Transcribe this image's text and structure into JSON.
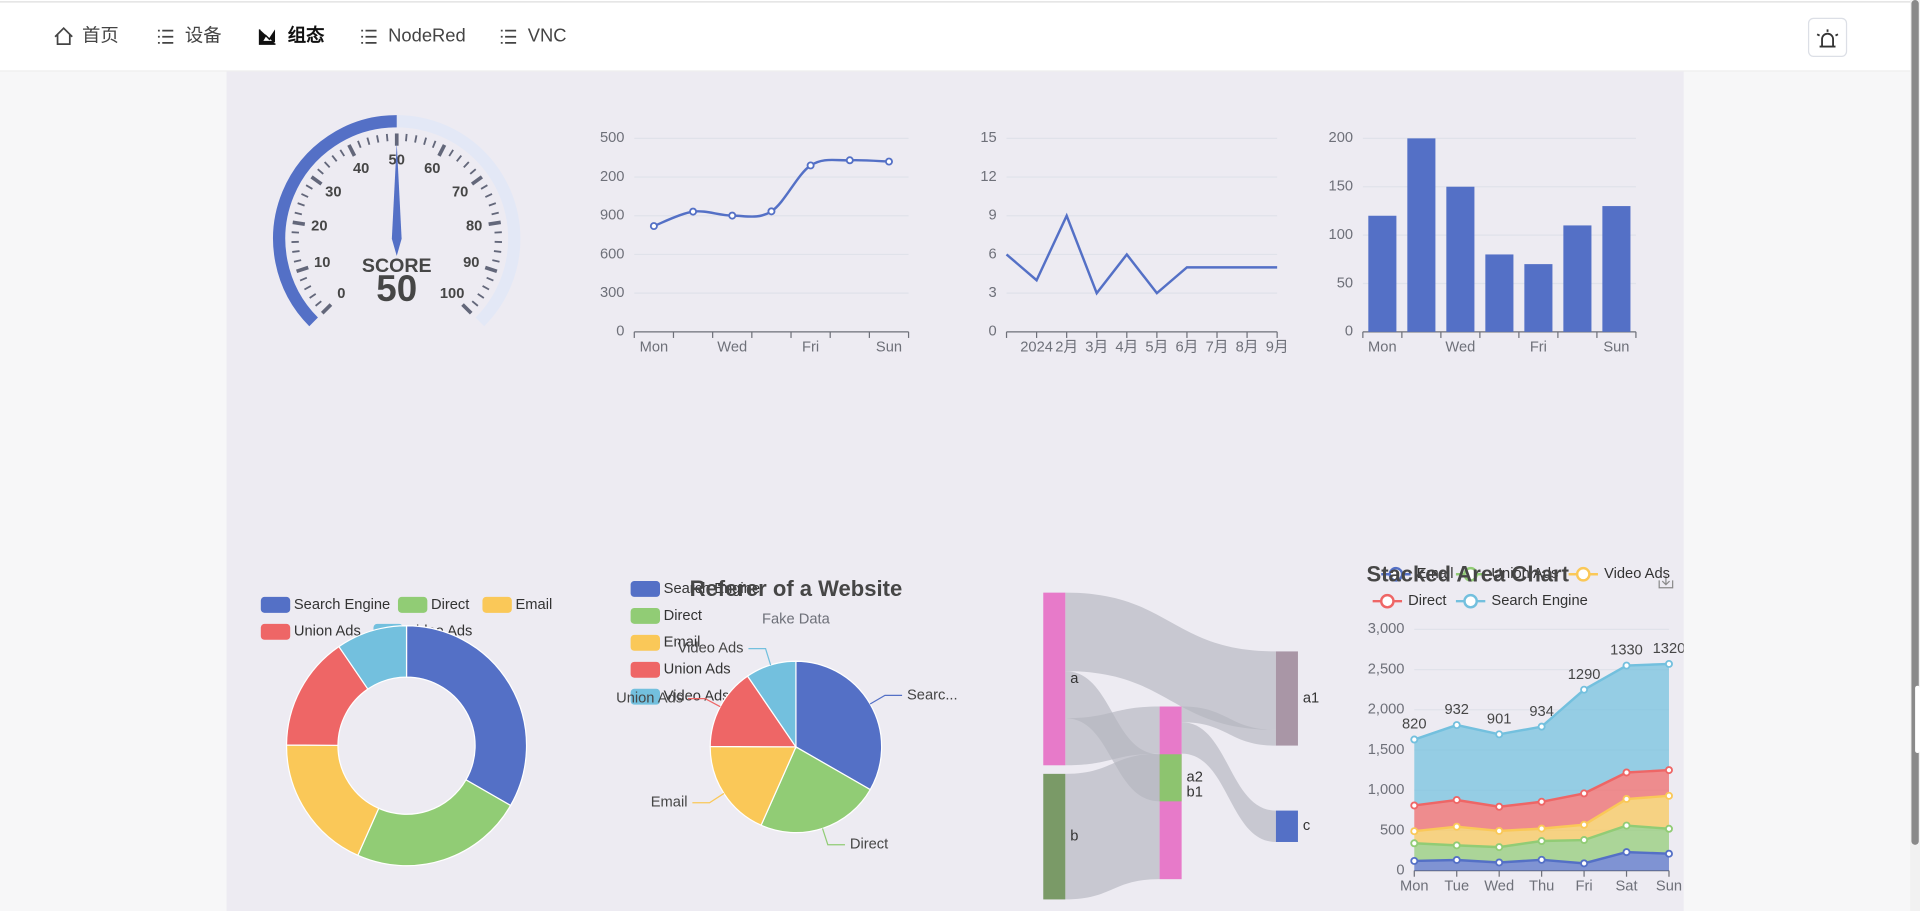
{
  "nav": {
    "items": [
      "首页",
      "设备",
      "组态",
      "NodeRed",
      "VNC"
    ],
    "active": 2
  },
  "chart_data": [
    {
      "type": "gauge",
      "label": "SCORE",
      "value": 50,
      "ylim": [
        0,
        100
      ],
      "yticks": [
        0,
        10,
        20,
        30,
        40,
        50,
        60,
        70,
        80,
        90,
        100
      ],
      "color": "#5470c6"
    },
    {
      "type": "line",
      "categories": [
        "Mon",
        null,
        "Wed",
        null,
        "Fri",
        null,
        "Sun"
      ],
      "values": [
        820,
        932,
        901,
        934,
        1290,
        1330,
        1320
      ],
      "ylim": [
        0,
        1500
      ],
      "yticks": [
        0,
        300,
        600,
        900,
        {
          "value": 1200,
          "label": "200"
        },
        {
          "value": 1500,
          "label": "500"
        }
      ],
      "boundary_gap": true,
      "smooth": true,
      "symbols": true,
      "color": "#5470c6",
      "grid": true
    },
    {
      "type": "line",
      "categories": [
        null,
        "2024",
        "2月",
        "3月",
        "4月",
        "5月",
        "6月",
        "7月",
        "8月",
        "9月"
      ],
      "values": [
        6,
        4,
        9,
        3,
        6,
        3,
        5,
        5,
        5,
        5
      ],
      "ylim": [
        0,
        15
      ],
      "yticks": [
        0,
        3,
        6,
        9,
        12,
        15
      ],
      "boundary_gap": false,
      "smooth": false,
      "symbols": false,
      "color": "#5470c6",
      "grid": true
    },
    {
      "type": "bar",
      "categories": [
        "Mon",
        null,
        "Wed",
        null,
        "Fri",
        null,
        "Sun"
      ],
      "values": [
        120,
        200,
        150,
        80,
        70,
        110,
        130
      ],
      "ylim": [
        0,
        200
      ],
      "yticks": [
        0,
        50,
        100,
        150,
        200
      ],
      "boundary_gap": true,
      "color": "#5470c6",
      "grid": true
    },
    {
      "type": "donut",
      "categories": [
        "Search Engine",
        "Direct",
        "Email",
        "Union Ads",
        "Video Ads"
      ],
      "values": [
        1048,
        735,
        580,
        484,
        300
      ],
      "colors": [
        "#5470c6",
        "#91cc75",
        "#fac858",
        "#ee6666",
        "#73c0de"
      ],
      "legend": "top"
    },
    {
      "type": "pie",
      "title": "Referer of a Website",
      "subtitle": "Fake Data",
      "categories": [
        "Search Engine",
        "Direct",
        "Email",
        "Union Ads",
        "Video Ads"
      ],
      "values": [
        1048,
        735,
        580,
        484,
        300
      ],
      "colors": [
        "#5470c6",
        "#91cc75",
        "#fac858",
        "#ee6666",
        "#73c0de"
      ],
      "point_labels": [
        "Searc...",
        "Direct",
        "Email",
        "Union Ads",
        "Video Ads"
      ],
      "legend": "left"
    },
    {
      "type": "sankey",
      "nodes": [
        {
          "name": "a",
          "color": "#e77ac9"
        },
        {
          "name": "b",
          "color": "#7a9a67"
        },
        {
          "name": "b1",
          "color": "#e77ac9"
        },
        {
          "name": "a1",
          "color": "#a996a6"
        },
        {
          "name": "a2",
          "color": "#8dc46f"
        },
        {
          "name": "c",
          "color": "#5470c6"
        }
      ],
      "links": [
        {
          "source": "a",
          "target": "a1",
          "value": 5
        },
        {
          "source": "a",
          "target": "a2",
          "value": 3
        },
        {
          "source": "a",
          "target": "b1",
          "value": 3
        },
        {
          "source": "b",
          "target": "b1",
          "value": 8
        },
        {
          "source": "b1",
          "target": "a1",
          "value": 1
        },
        {
          "source": "b1",
          "target": "c",
          "value": 2
        }
      ]
    },
    {
      "type": "area",
      "title": "Stacked Area Chart",
      "categories": [
        "Mon",
        "Tue",
        "Wed",
        "Thu",
        "Fri",
        "Sat",
        "Sun"
      ],
      "series": [
        {
          "name": "Email",
          "color": "#5470c6",
          "values": [
            120,
            132,
            101,
            134,
            90,
            230,
            210
          ]
        },
        {
          "name": "Union Ads",
          "color": "#91cc75",
          "values": [
            220,
            182,
            191,
            234,
            290,
            330,
            310
          ]
        },
        {
          "name": "Video Ads",
          "color": "#fac858",
          "values": [
            150,
            232,
            201,
            154,
            190,
            330,
            410
          ]
        },
        {
          "name": "Direct",
          "color": "#ee6666",
          "values": [
            320,
            332,
            301,
            334,
            390,
            330,
            320
          ]
        },
        {
          "name": "Search Engine",
          "color": "#73c0de",
          "values": [
            820,
            932,
            901,
            934,
            1290,
            1330,
            1320
          ],
          "labels": true
        }
      ],
      "ylim": [
        0,
        3000
      ],
      "yticks": [
        0,
        500,
        {
          "value": 1000,
          "label": "1,000"
        },
        {
          "value": 1500,
          "label": "1,500"
        },
        {
          "value": 2000,
          "label": "2,000"
        },
        {
          "value": 2500,
          "label": "2,500"
        },
        {
          "value": 3000,
          "label": "3,000"
        }
      ],
      "boundary_gap": false,
      "stacked": true,
      "grid": true
    }
  ]
}
